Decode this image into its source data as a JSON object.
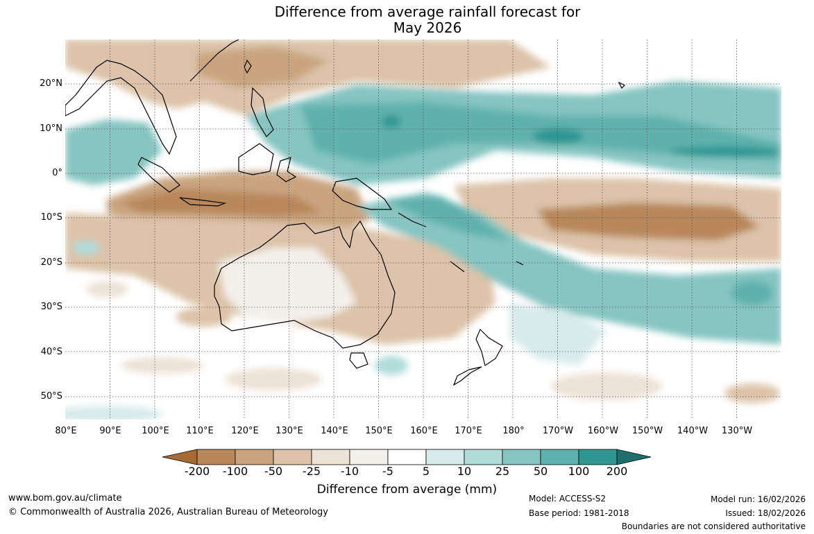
{
  "title": {
    "line1": "Difference from average rainfall forecast for",
    "line2": "May 2026"
  },
  "map": {
    "lat_labels": [
      "20°N",
      "10°N",
      "0°",
      "10°S",
      "20°S",
      "30°S",
      "40°S",
      "50°S"
    ],
    "lon_labels": [
      "80°E",
      "90°E",
      "100°E",
      "110°E",
      "120°E",
      "130°E",
      "140°E",
      "150°E",
      "160°E",
      "170°E",
      "180°",
      "170°W",
      "160°W",
      "150°W",
      "140°W",
      "130°W"
    ]
  },
  "colorbar": {
    "ticks": [
      "-200",
      "-100",
      "-50",
      "-25",
      "-10",
      "-5",
      "5",
      "10",
      "25",
      "50",
      "100",
      "200"
    ],
    "colors": [
      "#a66a33",
      "#b8875a",
      "#c9a47f",
      "#dcc3a9",
      "#ece2d6",
      "#f3efea",
      "#ffffff",
      "#d7ebea",
      "#b1dcd9",
      "#86c5c1",
      "#5eb1ad",
      "#2f9691",
      "#1d6f6c"
    ],
    "label": "Difference from average (mm)"
  },
  "footer": {
    "url": "www.bom.gov.au/climate",
    "copyright": "© Commonwealth of Australia 2026, Australian Bureau of Meteorology",
    "model": "Model: ACCESS-S2",
    "base_period": "Base period: 1981-2018",
    "model_run": "Model run: 16/02/2026",
    "issued": "Issued: 18/02/2026",
    "boundaries": "Boundaries are not considered authoritative"
  }
}
